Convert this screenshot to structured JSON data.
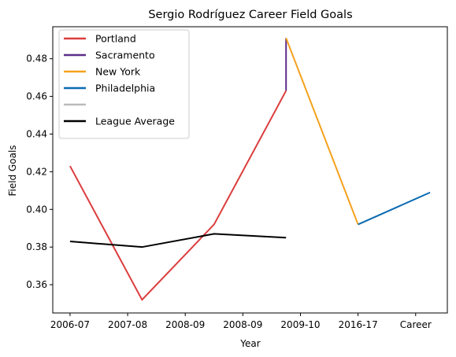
{
  "chart_data": {
    "type": "line",
    "title": "Sergio Rodríguez Career Field Goals",
    "xlabel": "Year",
    "ylabel": "Field Goals",
    "categories": [
      "2006-07",
      "2007-08",
      "2008-09",
      "2008-09",
      "2009-10",
      "2016-17",
      "Career"
    ],
    "ylim": [
      0.345,
      0.497
    ],
    "yticks": [
      0.36,
      0.38,
      0.4,
      0.42,
      0.44,
      0.46,
      0.48
    ],
    "ytick_labels": [
      "0.36",
      "0.38",
      "0.40",
      "0.42",
      "0.44",
      "0.46",
      "0.48"
    ],
    "grid": false,
    "legend_placement": "upper-left",
    "series": [
      {
        "name": "Portland",
        "color": "#dc3d3d",
        "points": [
          {
            "x": 0,
            "y": 0.423
          },
          {
            "x": 1.25,
            "y": 0.352
          },
          {
            "x": 2.5,
            "y": 0.392
          },
          {
            "x": 3.75,
            "y": 0.463
          }
        ]
      },
      {
        "name": "Sacramento",
        "color": "#5e2d8c",
        "points": [
          {
            "x": 3.75,
            "y": 0.463
          },
          {
            "x": 3.75,
            "y": 0.491
          }
        ]
      },
      {
        "name": "New York",
        "color": "#f5a11c",
        "points": [
          {
            "x": 3.75,
            "y": 0.491
          },
          {
            "x": 5,
            "y": 0.392
          }
        ]
      },
      {
        "name": "Philadelphia",
        "color": "#0a6ab2",
        "points": [
          {
            "x": 5,
            "y": 0.392
          },
          {
            "x": 6.25,
            "y": 0.409
          }
        ]
      },
      {
        "name": "",
        "color": "#bbbbbb",
        "points": []
      },
      {
        "name": "League Average",
        "color": "#000000",
        "points": [
          {
            "x": 0,
            "y": 0.383
          },
          {
            "x": 1.25,
            "y": 0.38
          },
          {
            "x": 2.5,
            "y": 0.387
          },
          {
            "x": 3.75,
            "y": 0.385
          }
        ]
      }
    ]
  }
}
